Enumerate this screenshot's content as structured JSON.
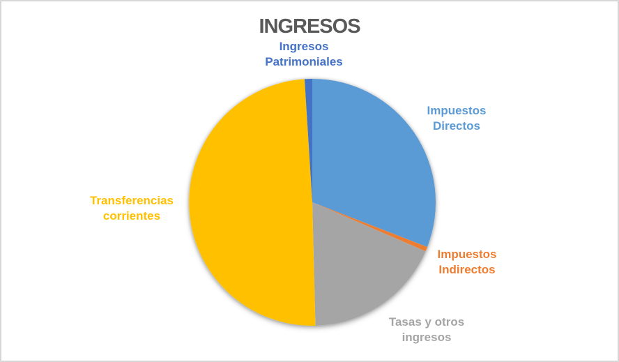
{
  "window": {
    "background": "#ffffff",
    "border_color": "#d7d7d7"
  },
  "chart_data": {
    "type": "pie",
    "title": "INGRESOS",
    "title_color": "#595959",
    "legend_position": "none",
    "data_labels": "category names outside, colored to match slice",
    "start_angle_deg": 0,
    "direction": "clockwise",
    "values_are_estimates_from_angles": true,
    "slices": [
      {
        "label": "Impuestos Directos",
        "value_pct": 30.9,
        "color": "#5B9BD5"
      },
      {
        "label": "Impuestos Indirectos",
        "value_pct": 0.6,
        "color": "#ED7D31"
      },
      {
        "label": "Tasas y otros ingresos",
        "value_pct": 18.1,
        "color": "#A5A5A5"
      },
      {
        "label": "Transferencias corrientes",
        "value_pct": 49.4,
        "color": "#FFC000"
      },
      {
        "label": "Ingresos Patrimoniales",
        "value_pct": 1.0,
        "color": "#4472C4"
      }
    ]
  }
}
